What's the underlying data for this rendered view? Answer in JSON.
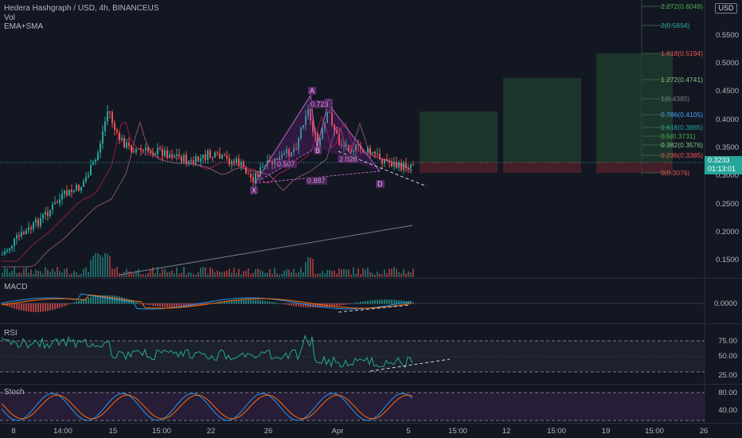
{
  "header": {
    "symbol_line": "Hedera Hashgraph / USD, 4h, BINANCEUS",
    "vol_label": "Vol",
    "ema_label": "EMA+SMA"
  },
  "currency_button": "USD",
  "last_price": {
    "value": "0.3233",
    "countdown": "01:13:01"
  },
  "price_axis": [
    "0.5500",
    "0.5000",
    "0.4500",
    "0.4000",
    "0.3500",
    "0.3000",
    "0.2500",
    "0.2000",
    "0.1500"
  ],
  "fib_levels": [
    "2.272(0.6049)",
    "2(0.5694)",
    "1.618(0.5194)",
    "1.272(0.4741)",
    "1(0.4385)",
    "0.786(0.4105)",
    "0.618(0.3885)",
    "0.5(0.3731)",
    "0.382(0.3576)",
    "0.236(0.3385)",
    "0(0.3076)"
  ],
  "harmonic_points": {
    "x": "X",
    "a": "A",
    "b": "B",
    "c": "C",
    "d": "D"
  },
  "harmonic_ratios": {
    "xb": "0.507",
    "ac": "0.723",
    "bd": "2.028",
    "xd": "0.887"
  },
  "macd": {
    "title": "MACD",
    "axis": [
      "0.0000"
    ]
  },
  "rsi": {
    "title": "RSI",
    "axis": [
      "75.00",
      "50.00",
      "25.00"
    ]
  },
  "stoch": {
    "title": "Stoch",
    "axis": [
      "80.00",
      "40.00"
    ]
  },
  "time_axis": [
    "8",
    "14:00",
    "15",
    "15:00",
    "22",
    "26",
    "Apr",
    "5",
    "15:00",
    "12",
    "15:00",
    "19",
    "15:00",
    "26"
  ],
  "colors": {
    "up": "#26a69a",
    "down": "#ef5350",
    "pattern": "#9c27b0",
    "ema_green": "#26a69a",
    "sma_grey": "#787b86"
  }
}
